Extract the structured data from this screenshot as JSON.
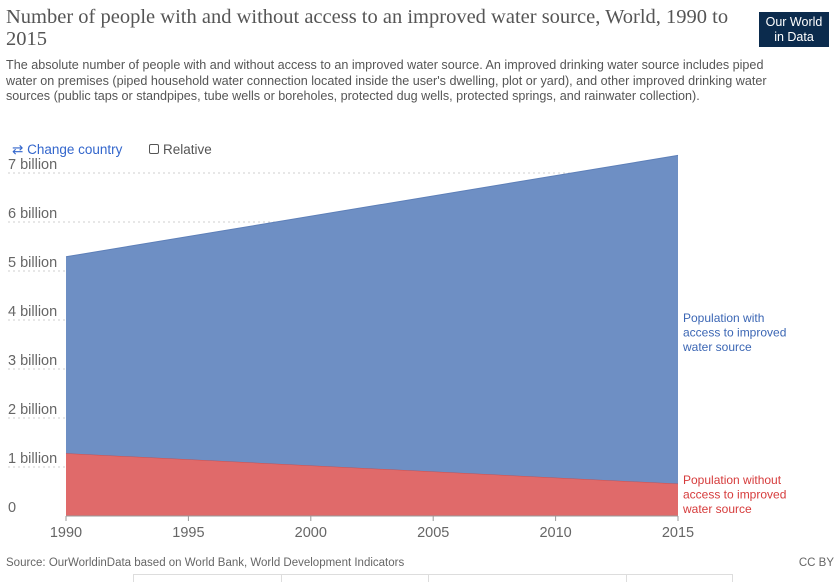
{
  "header": {
    "title": "Number of people with and without access to an improved water source, World, 1990 to 2015",
    "subtitle": "The absolute number of people with and without access to an improved water source. An improved drinking water source includes piped water on premises (piped household water connection located inside the user's dwelling, plot or yard), and other improved drinking water sources (public taps or standpipes, tube wells or boreholes, protected dug wells, protected springs, and rainwater collection).",
    "logo_line1": "Our World",
    "logo_line2": "in Data"
  },
  "controls": {
    "change_country_icon": "⇄",
    "change_country_label": "Change country",
    "relative_label": "Relative"
  },
  "footer": {
    "source": "Source: OurWorldinData based on World Bank, World Development Indicators",
    "license": "CC BY"
  },
  "colors": {
    "with_access": "#6e8fc4",
    "without_access": "#e06a6a",
    "with_label": "#3b66b4",
    "without_label": "#d63b3b"
  },
  "chart_data": {
    "type": "area",
    "stacked": true,
    "x": [
      1990,
      2015
    ],
    "xlim": [
      1990,
      2015
    ],
    "ylim": [
      0,
      7000000000
    ],
    "x_ticks": [
      1990,
      1995,
      2000,
      2005,
      2010,
      2015
    ],
    "y_ticks": [
      0,
      1000000000,
      2000000000,
      3000000000,
      4000000000,
      5000000000,
      6000000000,
      7000000000
    ],
    "y_tick_labels": [
      "0",
      "1 billion",
      "2 billion",
      "3 billion",
      "4 billion",
      "5 billion",
      "6 billion",
      "7 billion"
    ],
    "grid": "horizontal-dotted",
    "series": [
      {
        "name": "Population without access to improved water source",
        "label_lines": [
          "Population without",
          "access to improved",
          "water source"
        ],
        "color": "#e06a6a",
        "values": [
          1280000000,
          660000000
        ]
      },
      {
        "name": "Population with access to improved water source",
        "label_lines": [
          "Population with",
          "access to improved",
          "water source"
        ],
        "color": "#6e8fc4",
        "values": [
          4010000000,
          6700000000
        ]
      }
    ]
  }
}
